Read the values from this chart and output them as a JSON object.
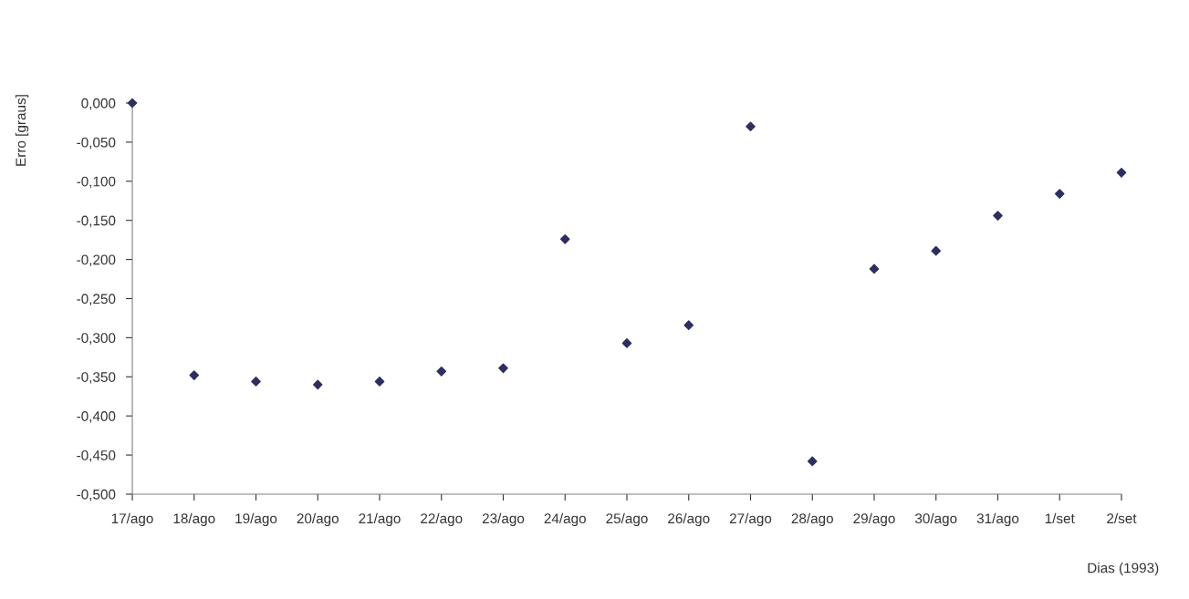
{
  "chart_data": {
    "type": "scatter",
    "xlabel": "Dias (1993)",
    "ylabel": "Erro [graus]",
    "categories": [
      "17/ago",
      "18/ago",
      "19/ago",
      "20/ago",
      "21/ago",
      "22/ago",
      "23/ago",
      "24/ago",
      "25/ago",
      "26/ago",
      "27/ago",
      "28/ago",
      "29/ago",
      "30/ago",
      "31/ago",
      "1/set",
      "2/set"
    ],
    "series": [
      {
        "color": "#2e2e60",
        "values": [
          0.0,
          -0.348,
          -0.356,
          -0.36,
          -0.356,
          -0.343,
          -0.339,
          -0.174,
          -0.307,
          -0.284,
          -0.03,
          -0.458,
          -0.212,
          -0.189,
          -0.144,
          -0.116,
          -0.089
        ]
      }
    ],
    "ylim": [
      -0.5,
      0.0
    ],
    "yticks": [
      {
        "value": 0.0,
        "label": "0,000"
      },
      {
        "value": -0.05,
        "label": "-0,050"
      },
      {
        "value": -0.1,
        "label": "-0,100"
      },
      {
        "value": -0.15,
        "label": "-0,150"
      },
      {
        "value": -0.2,
        "label": "-0,200"
      },
      {
        "value": -0.25,
        "label": "-0,250"
      },
      {
        "value": -0.3,
        "label": "-0,300"
      },
      {
        "value": -0.35,
        "label": "-0,350"
      },
      {
        "value": -0.4,
        "label": "-0,400"
      },
      {
        "value": -0.45,
        "label": "-0,450"
      },
      {
        "value": -0.5,
        "label": "-0,500"
      }
    ],
    "marker": "diamond",
    "grid": false
  }
}
